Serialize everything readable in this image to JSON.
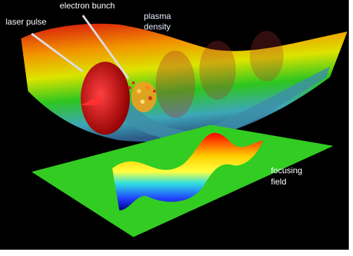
{
  "labels": {
    "laser_pulse": "laser pulse",
    "electron_bunch": "electron bunch",
    "plasma_density": [
      "plasma",
      "density"
    ],
    "focusing_field": [
      "focusing",
      "field"
    ]
  }
}
